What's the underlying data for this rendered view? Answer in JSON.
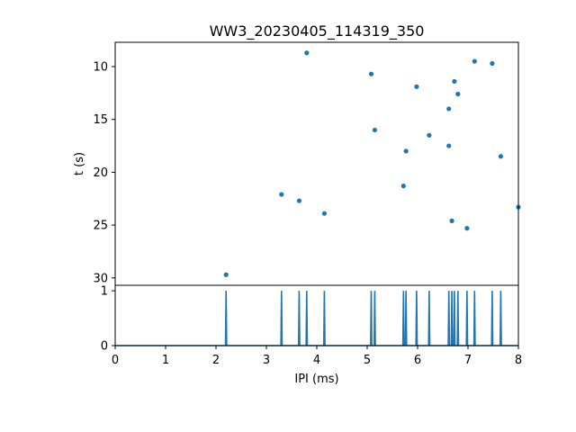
{
  "chart_data": [
    {
      "type": "scatter",
      "title": "WW3_20230405_114319_350",
      "xlabel": "",
      "ylabel": "t (s)",
      "xlim": [
        0,
        8
      ],
      "ylim": [
        30.7,
        7.7
      ],
      "y_inverted": true,
      "yticks": [
        10,
        15,
        20,
        25,
        30
      ],
      "color": "#1f77b4",
      "points": [
        {
          "x": 2.2,
          "y": 29.7
        },
        {
          "x": 3.3,
          "y": 22.1
        },
        {
          "x": 3.65,
          "y": 22.7
        },
        {
          "x": 3.8,
          "y": 8.7
        },
        {
          "x": 4.15,
          "y": 23.9
        },
        {
          "x": 5.08,
          "y": 10.7
        },
        {
          "x": 5.15,
          "y": 16.0
        },
        {
          "x": 5.72,
          "y": 21.3
        },
        {
          "x": 5.77,
          "y": 18.0
        },
        {
          "x": 5.98,
          "y": 11.9
        },
        {
          "x": 6.23,
          "y": 16.5
        },
        {
          "x": 6.62,
          "y": 14.0
        },
        {
          "x": 6.62,
          "y": 17.5
        },
        {
          "x": 6.68,
          "y": 24.6
        },
        {
          "x": 6.73,
          "y": 11.4
        },
        {
          "x": 6.8,
          "y": 12.6
        },
        {
          "x": 6.98,
          "y": 25.3
        },
        {
          "x": 7.13,
          "y": 9.5
        },
        {
          "x": 7.48,
          "y": 9.7
        },
        {
          "x": 7.65,
          "y": 18.5
        },
        {
          "x": 8.0,
          "y": 23.3
        }
      ]
    },
    {
      "type": "line",
      "title": "",
      "xlabel": "IPI (ms)",
      "ylabel": "",
      "xlim": [
        0,
        8
      ],
      "ylim": [
        0,
        1.1
      ],
      "xticks": [
        0,
        1,
        2,
        3,
        4,
        5,
        6,
        7,
        8
      ],
      "yticks": [
        0,
        1
      ],
      "color": "#1f77b4",
      "baseline": 0,
      "spike_height": 1,
      "spikes_x": [
        2.2,
        3.3,
        3.65,
        3.8,
        4.15,
        5.08,
        5.15,
        5.72,
        5.77,
        5.98,
        6.23,
        6.62,
        6.68,
        6.73,
        6.8,
        6.98,
        7.13,
        7.48,
        7.65
      ]
    }
  ]
}
